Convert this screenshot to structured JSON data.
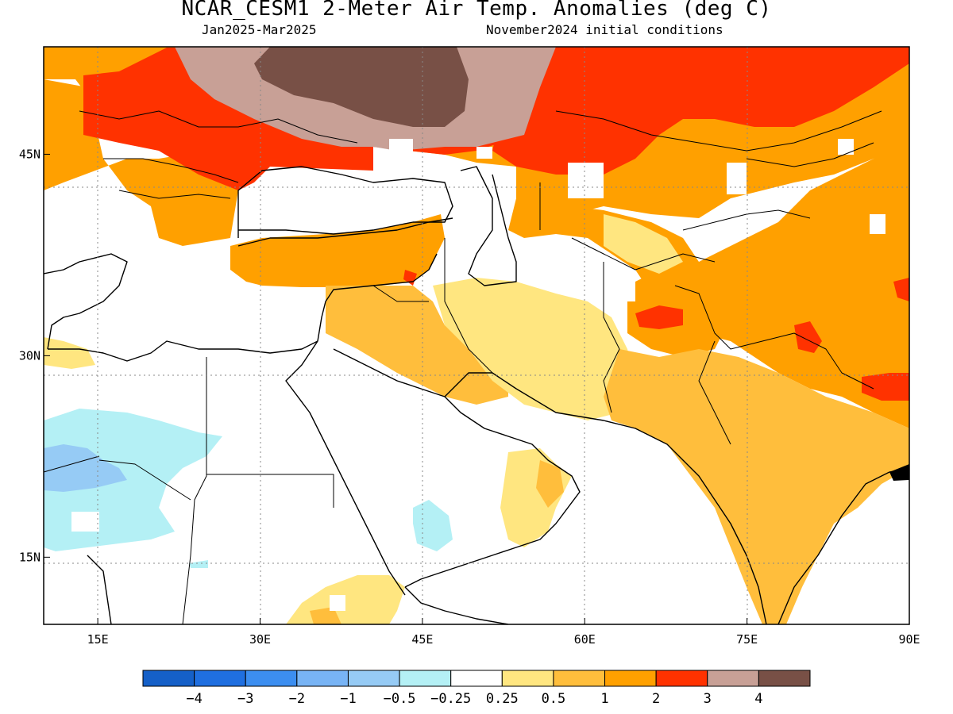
{
  "header": {
    "title": "NCAR_CESM1 2-Meter Air Temp. Anomalies (deg C)",
    "period": "Jan2025-Mar2025",
    "init": "November2024 initial conditions"
  },
  "axes": {
    "lon_range": [
      10,
      90
    ],
    "lat_range": [
      10,
      53
    ],
    "x_ticks": [
      {
        "value": 15,
        "label": "15E"
      },
      {
        "value": 30,
        "label": "30E"
      },
      {
        "value": 45,
        "label": "45E"
      },
      {
        "value": 60,
        "label": "60E"
      },
      {
        "value": 75,
        "label": "75E"
      },
      {
        "value": 90,
        "label": "90E"
      }
    ],
    "y_ticks": [
      {
        "value": 45,
        "label": "45N"
      },
      {
        "value": 30,
        "label": "30N"
      },
      {
        "value": 15,
        "label": "15N"
      }
    ],
    "grid": "dotted"
  },
  "colorbar": {
    "colors": [
      "#1560c8",
      "#1f6fe0",
      "#3c8ef0",
      "#78b4f5",
      "#96cbf5",
      "#b4f0f5",
      "#ffffff",
      "#ffe680",
      "#ffbe3c",
      "#ffa000",
      "#ff3200",
      "#c8a096",
      "#785046"
    ],
    "labels": [
      "-4",
      "-3",
      "-2",
      "-1",
      "-0.5",
      "-0.25",
      "0.25",
      "0.5",
      "1",
      "2",
      "3",
      "4"
    ]
  },
  "regions": [
    {
      "name": "northern-band",
      "color": "#ff3200",
      "lon": [
        10,
        90
      ],
      "lat": [
        47,
        53
      ]
    },
    {
      "name": "russia-plain-high",
      "color": "#c8a096",
      "lon": [
        22,
        51
      ],
      "lat": [
        47,
        53
      ]
    },
    {
      "name": "russia-plain-max",
      "color": "#785046",
      "lon": [
        29,
        47
      ],
      "lat": [
        48.5,
        53
      ]
    },
    {
      "name": "central-asia",
      "color": "#ffa000",
      "lon": [
        48,
        90
      ],
      "lat": [
        38,
        49
      ]
    },
    {
      "name": "middle-east",
      "color": "#ffbe3c",
      "lon": [
        46,
        90
      ],
      "lat": [
        26,
        38
      ]
    },
    {
      "name": "arabia-east",
      "color": "#ffe680",
      "lon": [
        44,
        56
      ],
      "lat": [
        30,
        36
      ]
    },
    {
      "name": "tibet-hot",
      "color": "#ff3200",
      "lon": [
        85,
        90
      ],
      "lat": [
        28,
        31
      ]
    },
    {
      "name": "india",
      "color": "#ffbe3c",
      "lon": [
        68,
        90
      ],
      "lat": [
        8,
        26
      ]
    },
    {
      "name": "sahara-cool",
      "color": "#b4f0f5",
      "lon": [
        10,
        24
      ],
      "lat": [
        16,
        26
      ]
    },
    {
      "name": "sahara-cooler",
      "color": "#96cbf5",
      "lon": [
        10,
        18
      ],
      "lat": [
        20,
        24
      ]
    }
  ]
}
